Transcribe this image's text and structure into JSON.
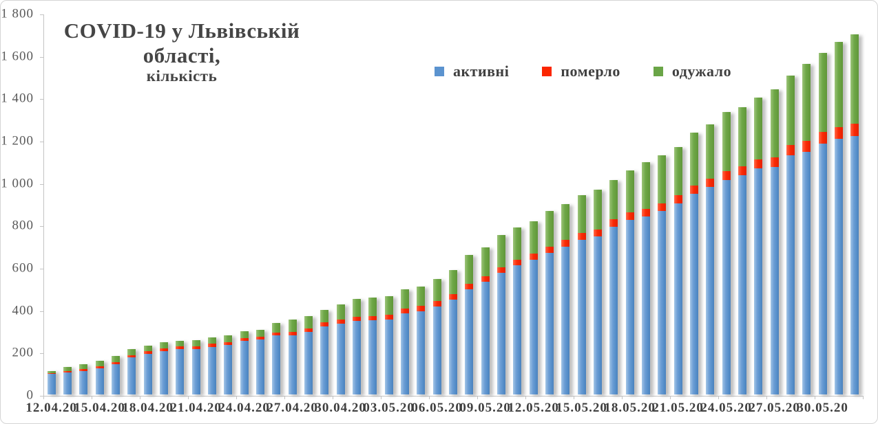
{
  "title": "COVID-19 у Львівській області,",
  "subtitle": "кількість",
  "legend": [
    {
      "label": "активні",
      "color": "#5b93cf"
    },
    {
      "label": "померло",
      "color": "#fb2600"
    },
    {
      "label": "одужало",
      "color": "#6aa547"
    }
  ],
  "chart_data": {
    "type": "bar",
    "stacked": true,
    "title": "COVID-19 у Львівській області, кількість",
    "xlabel": "",
    "ylabel": "",
    "ylim": [
      0,
      1800
    ],
    "y_tick_step": 200,
    "y_tick_labels": [
      "0",
      "200",
      "400",
      "600",
      "800",
      "1 000",
      "1 200",
      "1 400",
      "1 600",
      "1 800"
    ],
    "x_tick_every": 3,
    "grid": false,
    "legend_position": "top",
    "categories": [
      "12.04.20",
      "13.04.20",
      "14.04.20",
      "15.04.20",
      "16.04.20",
      "17.04.20",
      "18.04.20",
      "19.04.20",
      "20.04.20",
      "21.04.20",
      "22.04.20",
      "23.04.20",
      "24.04.20",
      "25.04.20",
      "26.04.20",
      "27.04.20",
      "28.04.20",
      "29.04.20",
      "30.04.20",
      "01.05.20",
      "02.05.20",
      "03.05.20",
      "04.05.20",
      "05.05.20",
      "06.05.20",
      "07.05.20",
      "08.05.20",
      "09.05.20",
      "10.05.20",
      "11.05.20",
      "12.05.20",
      "13.05.20",
      "14.05.20",
      "15.05.20",
      "16.05.20",
      "17.05.20",
      "18.05.20",
      "19.05.20",
      "20.05.20",
      "21.05.20",
      "22.05.20",
      "23.05.20",
      "24.05.20",
      "25.05.20",
      "26.05.20",
      "27.05.20",
      "28.05.20",
      "29.05.20",
      "30.05.20",
      "31.05.20",
      "01.06.20"
    ],
    "series": [
      {
        "name": "активні",
        "color": "#5b93cf",
        "values": [
          96,
          103,
          111,
          124,
          144,
          175,
          191,
          205,
          214,
          213,
          225,
          232,
          252,
          258,
          278,
          280,
          295,
          322,
          333,
          347,
          349,
          353,
          384,
          394,
          416,
          447,
          497,
          532,
          573,
          609,
          635,
          667,
          698,
          730,
          746,
          792,
          823,
          840,
          865,
          903,
          948,
          980,
          1013,
          1035,
          1067,
          1074,
          1128,
          1146,
          1184,
          1208,
          1218
        ]
      },
      {
        "name": "померло",
        "color": "#fb2600",
        "values": [
          4,
          6,
          8,
          9,
          10,
          11,
          12,
          13,
          13,
          13,
          14,
          14,
          14,
          15,
          15,
          15,
          16,
          17,
          20,
          21,
          21,
          22,
          23,
          24,
          25,
          25,
          25,
          26,
          27,
          28,
          29,
          30,
          31,
          32,
          33,
          34,
          35,
          36,
          38,
          38,
          39,
          40,
          41,
          42,
          43,
          45,
          50,
          51,
          54,
          54,
          61
        ]
      },
      {
        "name": "одужало",
        "color": "#6aa547",
        "values": [
          11,
          20,
          23,
          26,
          27,
          27,
          27,
          27,
          27,
          31,
          31,
          32,
          33,
          33,
          45,
          58,
          59,
          61,
          72,
          83,
          89,
          90,
          90,
          90,
          105,
          115,
          135,
          137,
          151,
          152,
          152,
          168,
          168,
          178,
          187,
          187,
          201,
          219,
          225,
          227,
          249,
          256,
          278,
          278,
          290,
          322,
          327,
          363,
          375,
          401,
          420
        ]
      }
    ]
  }
}
